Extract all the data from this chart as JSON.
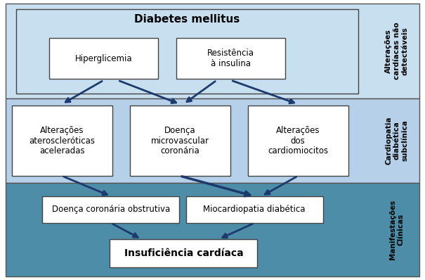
{
  "bg_color_top": "#c8dff0",
  "bg_color_mid": "#b5d0e8",
  "bg_color_bot": "#4d8da8",
  "box_fill": "#ffffff",
  "arrow_color": "#1c3a6e",
  "right_label_top": "Alterações\ncardíacas não\ndetectáveis",
  "right_label_mid": "Cardiopatia\ndiabética\nsubclínica",
  "right_label_bot": "Manifestações\nClínicas",
  "box_top_title": "Diabetes mellitus",
  "box_top_left": "Hiperglicemia",
  "box_top_right": "Resistência\nà insulina",
  "box_mid_left": "Alterações\nateroscleróticas\naceleradas",
  "box_mid_center": "Doença\nmicrovascular\ncoronária",
  "box_mid_right": "Alterações\ndos\ncardiomiocitos",
  "box_bot_left": "Doença coronária obstrutiva",
  "box_bot_right": "Miocardiopatia diabética",
  "box_bot_bottom": "Insuficiência cardíaca",
  "font_size_title": 11,
  "font_size_box": 8.5,
  "font_size_right": 7.5
}
